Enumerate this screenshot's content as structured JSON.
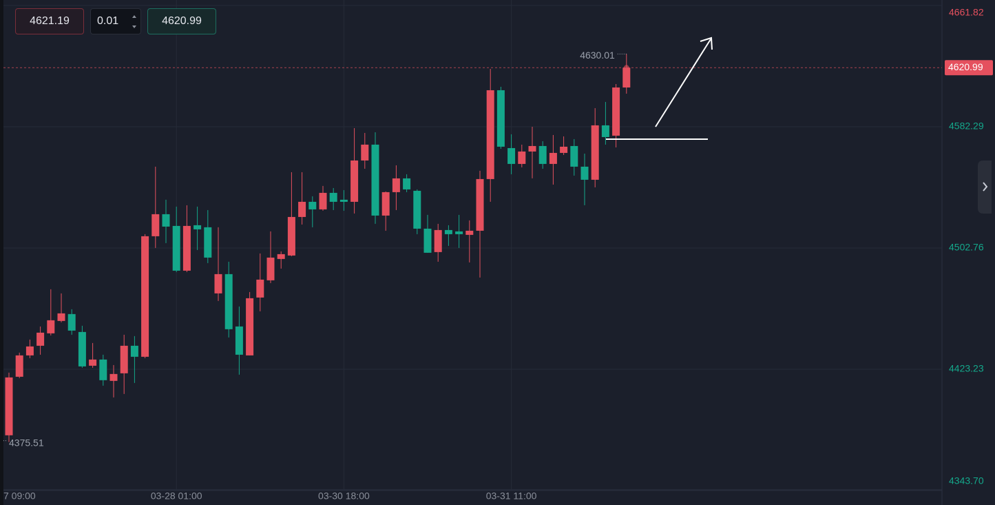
{
  "order_panel": {
    "ask": 4621.19,
    "volume": 0.01,
    "bid": 4620.99
  },
  "chart_data": {
    "type": "candlestick",
    "categories": [
      "7 09:00",
      null,
      null,
      null,
      null,
      null,
      null,
      null,
      null,
      null,
      null,
      null,
      null,
      null,
      null,
      null,
      "03-28 01:00",
      null,
      null,
      null,
      null,
      null,
      null,
      null,
      null,
      null,
      null,
      null,
      null,
      null,
      null,
      null,
      "03-30 18:00",
      null,
      null,
      null,
      null,
      null,
      null,
      null,
      null,
      null,
      null,
      null,
      null,
      null,
      null,
      null,
      "03-31 11:00",
      null,
      null,
      null,
      null,
      null,
      null,
      null,
      null,
      null,
      null,
      null
    ],
    "open": [
      4379.93,
      4418.32,
      4432.32,
      4438.65,
      4446.78,
      4454.91,
      4459.42,
      4447.68,
      4425.55,
      4429.61,
      4415.61,
      4420.58,
      4438.65,
      4431.42,
      4510.47,
      4524.92,
      4517.24,
      4487.88,
      4517.69,
      4516.34,
      4472.98,
      4485.62,
      4451.29,
      4432.32,
      4470.27,
      4481.56,
      4495.56,
      4497.82,
      4523.11,
      4533.05,
      4528.08,
      4538.92,
      4534.41,
      4533.05,
      4560.15,
      4570.54,
      4524.02,
      4539.38,
      4548.41,
      4540.28,
      4515.44,
      4500.08,
      4514.53,
      4513.63,
      4511.37,
      4514.08,
      4547.96,
      4606.23,
      4568.28,
      4557.9,
      4566.03,
      4569.64,
      4557.9,
      4565.12,
      4569.64,
      4556.09,
      4547.51,
      4583.19,
      4576.42,
      4608.03
    ],
    "high": [
      4421.03,
      4434.13,
      4442.71,
      4451.29,
      4475.69,
      4472.98,
      4462.59,
      4451.75,
      4440.45,
      4432.77,
      4426.0,
      4445.87,
      4444.97,
      4511.82,
      4556.09,
      4534.41,
      4529.89,
      4530.79,
      4529.89,
      4527.63,
      4516.34,
      4493.75,
      4464.39,
      4473.88,
      4499.17,
      4513.63,
      4500.53,
      4552.47,
      4552.47,
      4536.67,
      4543.44,
      4542.09,
      4540.73,
      4581.38,
      4578.22,
      4578.67,
      4539.83,
      4556.99,
      4551.12,
      4541.18,
      4524.47,
      4518.6,
      4517.69,
      4524.47,
      4520.86,
      4553.38,
      4620.23,
      4608.49,
      4577.32,
      4570.54,
      4582.29,
      4572.8,
      4576.87,
      4575.96,
      4574.16,
      4564.67,
      4594.48,
      4598.55,
      4610.29,
      4630.01
    ],
    "low": [
      4375.51,
      4417.42,
      4430.52,
      4432.77,
      4445.42,
      4454.0,
      4445.87,
      4424.19,
      4424.19,
      4412.45,
      4404.77,
      4407.03,
      4414.25,
      4430.52,
      4502.79,
      4505.95,
      4486.98,
      4486.98,
      4501.43,
      4492.85,
      4468.01,
      4444.07,
      4419.68,
      4432.32,
      4461.23,
      4479.75,
      4489.24,
      4497.37,
      4518.15,
      4516.34,
      4527.18,
      4527.63,
      4527.18,
      4525.37,
      4554.73,
      4518.6,
      4514.08,
      4527.63,
      4539.38,
      4511.82,
      4499.63,
      4493.75,
      4504.14,
      4502.79,
      4493.3,
      4483.36,
      4533.05,
      4567.83,
      4551.12,
      4555.64,
      4548.41,
      4554.73,
      4544.34,
      4563.77,
      4550.22,
      4530.79,
      4542.54,
      4570.54,
      4568.74,
      4603.97
    ],
    "close": [
      4417.87,
      4432.32,
      4438.19,
      4447.23,
      4455.36,
      4459.88,
      4448.58,
      4425.1,
      4429.61,
      4416.06,
      4420.13,
      4438.65,
      4431.42,
      4510.47,
      4524.92,
      4516.79,
      4487.88,
      4517.24,
      4514.98,
      4496.46,
      4485.62,
      4449.49,
      4432.77,
      4469.81,
      4482.01,
      4496.46,
      4498.72,
      4523.11,
      4533.05,
      4528.08,
      4538.92,
      4533.05,
      4533.05,
      4560.15,
      4570.54,
      4524.02,
      4539.38,
      4548.41,
      4541.18,
      4515.44,
      4499.63,
      4514.53,
      4511.82,
      4511.82,
      4514.08,
      4547.96,
      4606.23,
      4569.19,
      4557.9,
      4566.03,
      4569.64,
      4557.9,
      4565.12,
      4569.19,
      4556.09,
      4547.51,
      4583.19,
      4575.51,
      4608.03,
      4620.99
    ],
    "colors": {
      "up": "#e5505e",
      "down": "#14a88b"
    },
    "ylim": [
      4343.7,
      4665.4
    ],
    "yticks": [
      4661.82,
      4582.29,
      4502.76,
      4423.23,
      {
        "value": 4343.7,
        "label": "4343.70"
      }
    ],
    "grid": true
  }
}
